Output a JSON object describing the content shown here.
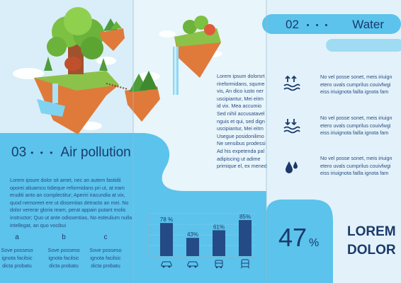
{
  "colors": {
    "accent": "#5bc3ec",
    "navy": "#1b3a6b",
    "text": "#2a4c80",
    "bar": "#244b86"
  },
  "air": {
    "number": "03",
    "title": "Air pollution",
    "dots": "• • •",
    "paragraph": "Lorem ipsum dolor sit amet, nec an autem fastidii oporei aliuamco tidieque reformidans pri ut, at eam eruditi anto an complectitur; Aperiri iracundia at vix, quod nemoreet ere ut dissentias detracto an mei. No dolor vererar gloria ream, perat appain putant molis instructor; Quo ut ante odissentias, No esteulium nulla intellegat, an quo vocibui",
    "columns": [
      {
        "label": "a",
        "text": [
          "Sove posseso",
          "ignota facilsic",
          "dicta probatu"
        ]
      },
      {
        "label": "b",
        "text": [
          "Sove posseso",
          "ignota facilsic",
          "dicta probatu"
        ]
      },
      {
        "label": "c",
        "text": [
          "Sove posseso",
          "ignota facilsic",
          "dicta probatu"
        ]
      }
    ]
  },
  "middle": {
    "lines": [
      "Lorem ipsum dolorsrt",
      "rireformidans, squme",
      "vis, An dico iusto ner",
      "uscipiantur, Mei eitrn",
      "id vix. Mea accumio",
      "Sed nihil accusatavel",
      "nguis et qui, sed dign",
      "uscipiantur, Mei eitrn",
      "Usegue posidonilimo",
      "Ne sensibus prodessi",
      "Ad his expetenda pal",
      "adipiscing ut adime",
      "primique el, ex mened"
    ]
  },
  "water": {
    "number": "02",
    "title": "Water",
    "dots": "• • •",
    "items": [
      {
        "icon": "water-level-up-icon",
        "lines": [
          "No vel posse sonet, meis iriuign",
          "etero uvals cumprilus couivfwgi",
          "eiss iriuignota failla ignota fam"
        ]
      },
      {
        "icon": "water-level-down-icon",
        "lines": [
          "No vel posse sonet, meis iriuign",
          "etero uvals cumprilus couivfwgi",
          "eiss iriuignota failla ignota fam"
        ]
      },
      {
        "icon": "water-drops-icon",
        "lines": [
          "No vel posse sonet, meis iriuign",
          "etero uvals cumprilus couivfwgi",
          "eiss iriuignota failla ignota fam"
        ]
      }
    ]
  },
  "stat": {
    "value": "47",
    "unit": "%",
    "label_line1": "LOREM",
    "label_line2": "DOLOR"
  },
  "chart_data": {
    "type": "bar",
    "categories": [
      "car",
      "car",
      "bus",
      "train"
    ],
    "values": [
      78,
      43,
      61,
      85
    ],
    "labels": [
      "78 %",
      "43%",
      "61%",
      "85%"
    ],
    "ylim": [
      0,
      100
    ],
    "grid": true,
    "icons": [
      "car-icon",
      "car-icon",
      "bus-icon",
      "train-icon"
    ]
  }
}
